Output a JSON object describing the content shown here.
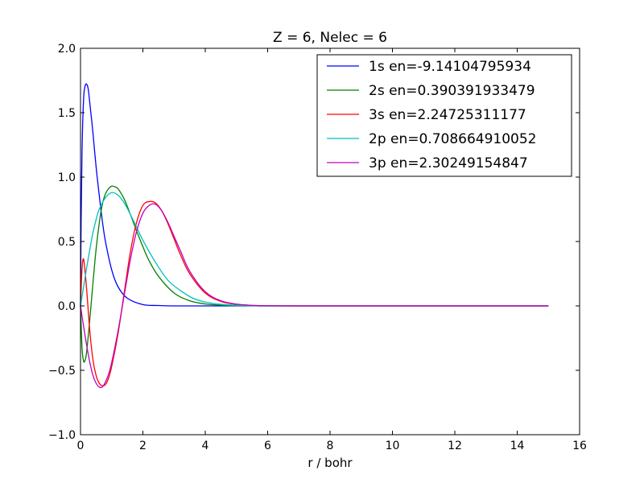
{
  "chart_data": {
    "type": "line",
    "title": "Z = 6, Nelec = 6",
    "xlabel": "r / bohr",
    "ylabel": "",
    "xlim": [
      0,
      16
    ],
    "ylim": [
      -1.0,
      2.0
    ],
    "xticks": [
      0,
      2,
      4,
      6,
      8,
      10,
      12,
      14,
      16
    ],
    "xtick_labels": [
      "0",
      "2",
      "4",
      "6",
      "8",
      "10",
      "12",
      "14",
      "16"
    ],
    "yticks": [
      -1.0,
      -0.5,
      0.0,
      0.5,
      1.0,
      1.5,
      2.0
    ],
    "ytick_labels": [
      "−1.0",
      "−0.5",
      "0.0",
      "0.5",
      "1.0",
      "1.5",
      "2.0"
    ],
    "grid": false,
    "legend_position": "top-right",
    "series": [
      {
        "name": "1s en=-9.14104795934",
        "color": "#0000ff",
        "x": [
          0,
          0.02,
          0.05,
          0.1,
          0.15,
          0.2,
          0.25,
          0.3,
          0.35,
          0.4,
          0.5,
          0.6,
          0.7,
          0.8,
          1.0,
          1.2,
          1.5,
          2.0,
          2.5,
          3.0,
          4.0,
          6.0,
          10.0,
          15.0
        ],
        "y": [
          0,
          0.66,
          1.22,
          1.61,
          1.71,
          1.72,
          1.68,
          1.57,
          1.46,
          1.34,
          1.08,
          0.86,
          0.66,
          0.5,
          0.28,
          0.15,
          0.06,
          0.01,
          0.003,
          0,
          0,
          0,
          0,
          0
        ]
      },
      {
        "name": "2s en=0.390391933479",
        "color": "#008000",
        "x": [
          0,
          0.05,
          0.1,
          0.15,
          0.2,
          0.3,
          0.4,
          0.5,
          0.6,
          0.7,
          0.8,
          0.9,
          1.0,
          1.1,
          1.2,
          1.4,
          1.6,
          1.8,
          2.0,
          2.2,
          2.5,
          3.0,
          3.5,
          4.0,
          4.5,
          5.0,
          5.5,
          6.0,
          8.0,
          12.0,
          15.0
        ],
        "y": [
          0,
          -0.33,
          -0.43,
          -0.42,
          -0.35,
          -0.1,
          0.18,
          0.44,
          0.64,
          0.79,
          0.87,
          0.91,
          0.93,
          0.925,
          0.91,
          0.83,
          0.71,
          0.58,
          0.46,
          0.35,
          0.23,
          0.1,
          0.04,
          0.015,
          0.006,
          0.002,
          0.001,
          0,
          0,
          0,
          0
        ]
      },
      {
        "name": "3s en=2.24725311177",
        "color": "#ff0000",
        "x": [
          0,
          0.04,
          0.08,
          0.12,
          0.2,
          0.3,
          0.4,
          0.5,
          0.6,
          0.7,
          0.8,
          0.9,
          1.0,
          1.2,
          1.4,
          1.6,
          1.8,
          2.0,
          2.2,
          2.4,
          2.6,
          2.8,
          3.0,
          3.2,
          3.5,
          4.0,
          4.5,
          5.0,
          5.5,
          6.0,
          7.0,
          10.0,
          15.0
        ],
        "y": [
          0,
          0.25,
          0.36,
          0.33,
          0.12,
          -0.2,
          -0.42,
          -0.54,
          -0.6,
          -0.62,
          -0.61,
          -0.56,
          -0.47,
          -0.22,
          0.1,
          0.42,
          0.65,
          0.78,
          0.81,
          0.8,
          0.74,
          0.64,
          0.52,
          0.4,
          0.25,
          0.1,
          0.035,
          0.012,
          0.004,
          0.001,
          0,
          0,
          0
        ]
      },
      {
        "name": "2p en=0.708664910052",
        "color": "#00bfbf",
        "x": [
          0,
          0.1,
          0.2,
          0.3,
          0.4,
          0.5,
          0.6,
          0.8,
          1.0,
          1.2,
          1.4,
          1.6,
          1.8,
          2.0,
          2.4,
          2.8,
          3.2,
          3.6,
          4.0,
          4.5,
          5.0,
          5.5,
          6.0,
          8.0,
          12.0,
          15.0
        ],
        "y": [
          0,
          0.15,
          0.3,
          0.44,
          0.57,
          0.67,
          0.75,
          0.84,
          0.88,
          0.86,
          0.8,
          0.71,
          0.61,
          0.51,
          0.34,
          0.2,
          0.12,
          0.06,
          0.03,
          0.012,
          0.005,
          0.002,
          0,
          0,
          0,
          0
        ]
      },
      {
        "name": "3p en=2.30249154847",
        "color": "#bf00bf",
        "x": [
          0,
          0.1,
          0.2,
          0.3,
          0.4,
          0.5,
          0.6,
          0.7,
          0.8,
          0.9,
          1.0,
          1.2,
          1.4,
          1.6,
          1.8,
          2.0,
          2.2,
          2.4,
          2.6,
          2.8,
          3.0,
          3.2,
          3.5,
          4.0,
          4.5,
          5.0,
          5.5,
          6.0,
          7.0,
          10.0,
          15.0
        ],
        "y": [
          0,
          -0.16,
          -0.31,
          -0.44,
          -0.54,
          -0.6,
          -0.63,
          -0.63,
          -0.59,
          -0.53,
          -0.44,
          -0.2,
          0.08,
          0.36,
          0.58,
          0.72,
          0.78,
          0.79,
          0.74,
          0.65,
          0.54,
          0.43,
          0.27,
          0.11,
          0.04,
          0.014,
          0.004,
          0.001,
          0,
          0,
          0
        ]
      }
    ]
  }
}
